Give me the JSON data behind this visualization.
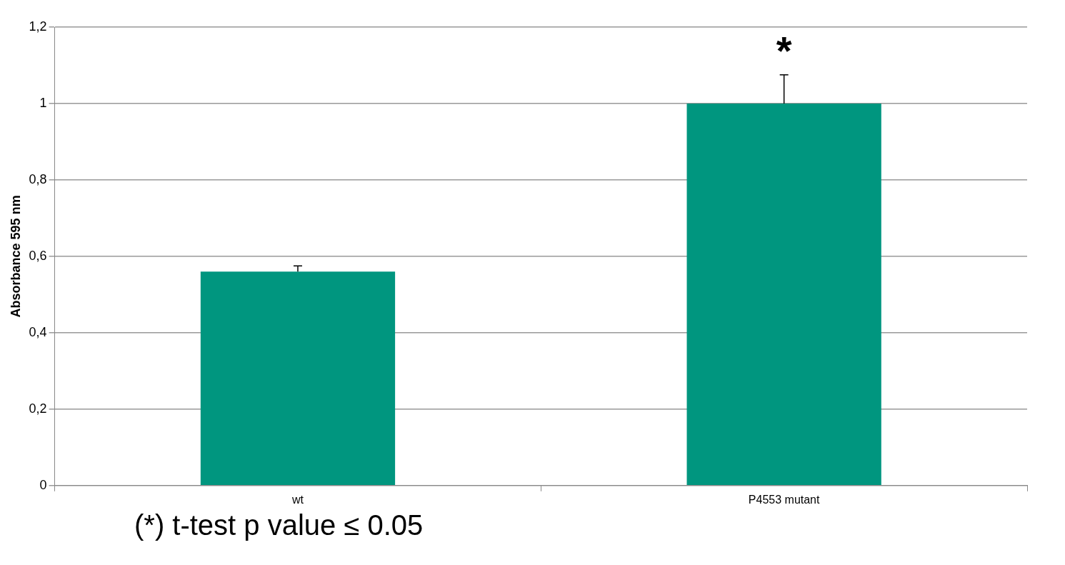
{
  "chart_data": {
    "type": "bar",
    "ylabel": "Absorbance 595 nm",
    "categories": [
      "wt",
      "P4553 mutant"
    ],
    "values": [
      0.56,
      1.0
    ],
    "color": "#00967f",
    "errors": [
      [
        0.56,
        0.575
      ],
      [
        1.0,
        1.075
      ]
    ],
    "ylim": [
      0,
      1.2
    ],
    "yticks": [
      0,
      {
        "value": 0.2,
        "label": "0,2"
      },
      {
        "value": 0.4,
        "label": "0,4"
      },
      {
        "value": 0.6,
        "label": "0,6"
      },
      {
        "value": 0.8,
        "label": "0,8"
      },
      1,
      {
        "value": 1.2,
        "label": "1,2"
      }
    ],
    "grid": "y",
    "legend": false,
    "annotations": [
      "*",
      "(*) t-test p value ≤ 0.05"
    ]
  }
}
